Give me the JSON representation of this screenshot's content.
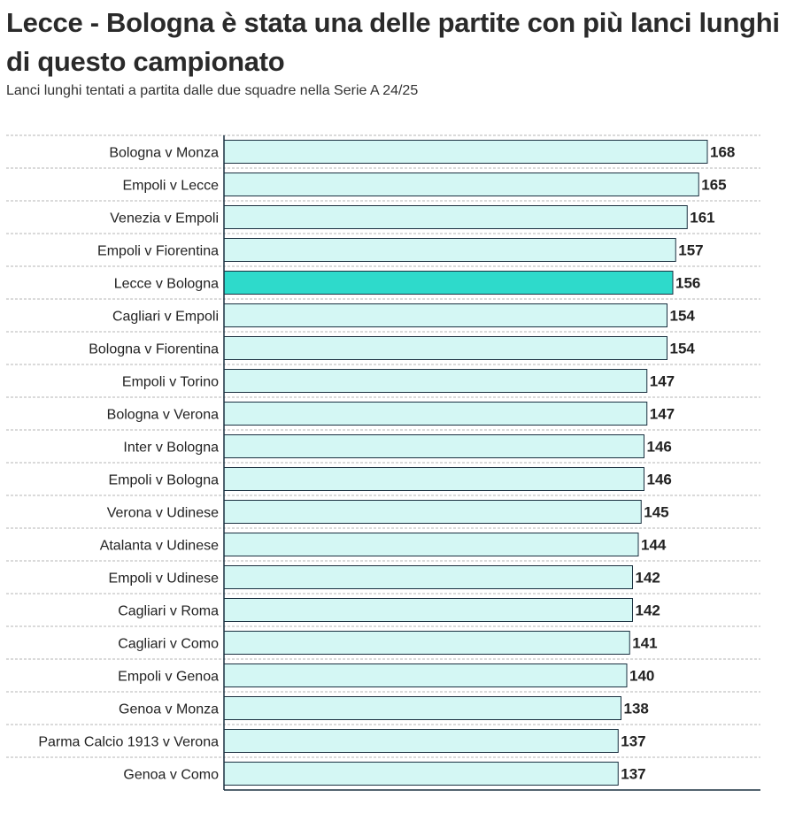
{
  "header": {
    "title": "Lecce - Bologna è stata una delle partite con più lanci lunghi di questo campionato",
    "subtitle": "Lanci lunghi tentati a partita dalle due squadre nella Serie A 24/25"
  },
  "colors": {
    "bar": "#d4f7f4",
    "highlight": "#2edacb",
    "bar_stroke": "#1a3040",
    "gridline": "#b5b5b5",
    "axis": "#1a3040"
  },
  "chart_data": {
    "type": "bar",
    "orientation": "horizontal",
    "title": "Lecce - Bologna è stata una delle partite con più lanci lunghi di questo campionato",
    "subtitle": "Lanci lunghi tentati a partita dalle due squadre nella Serie A 24/25",
    "categories": [
      "Bologna v Monza",
      "Empoli v Lecce",
      "Venezia v Empoli",
      "Empoli v Fiorentina",
      "Lecce v Bologna",
      "Cagliari v Empoli",
      "Bologna v Fiorentina",
      "Empoli v Torino",
      "Bologna v Verona",
      "Inter v Bologna",
      "Empoli v Bologna",
      "Verona v Udinese",
      "Atalanta v Udinese",
      "Empoli v Udinese",
      "Cagliari v Roma",
      "Cagliari v Como",
      "Empoli v Genoa",
      "Genoa v Monza",
      "Parma Calcio 1913 v Verona",
      "Genoa v Como"
    ],
    "values": [
      168,
      165,
      161,
      157,
      156,
      154,
      154,
      147,
      147,
      146,
      146,
      145,
      144,
      142,
      142,
      141,
      140,
      138,
      137,
      137
    ],
    "highlight": "Lecce v Bologna",
    "xlim": [
      0,
      168
    ],
    "grid": "horizontal dashed separators",
    "legend": "none"
  }
}
